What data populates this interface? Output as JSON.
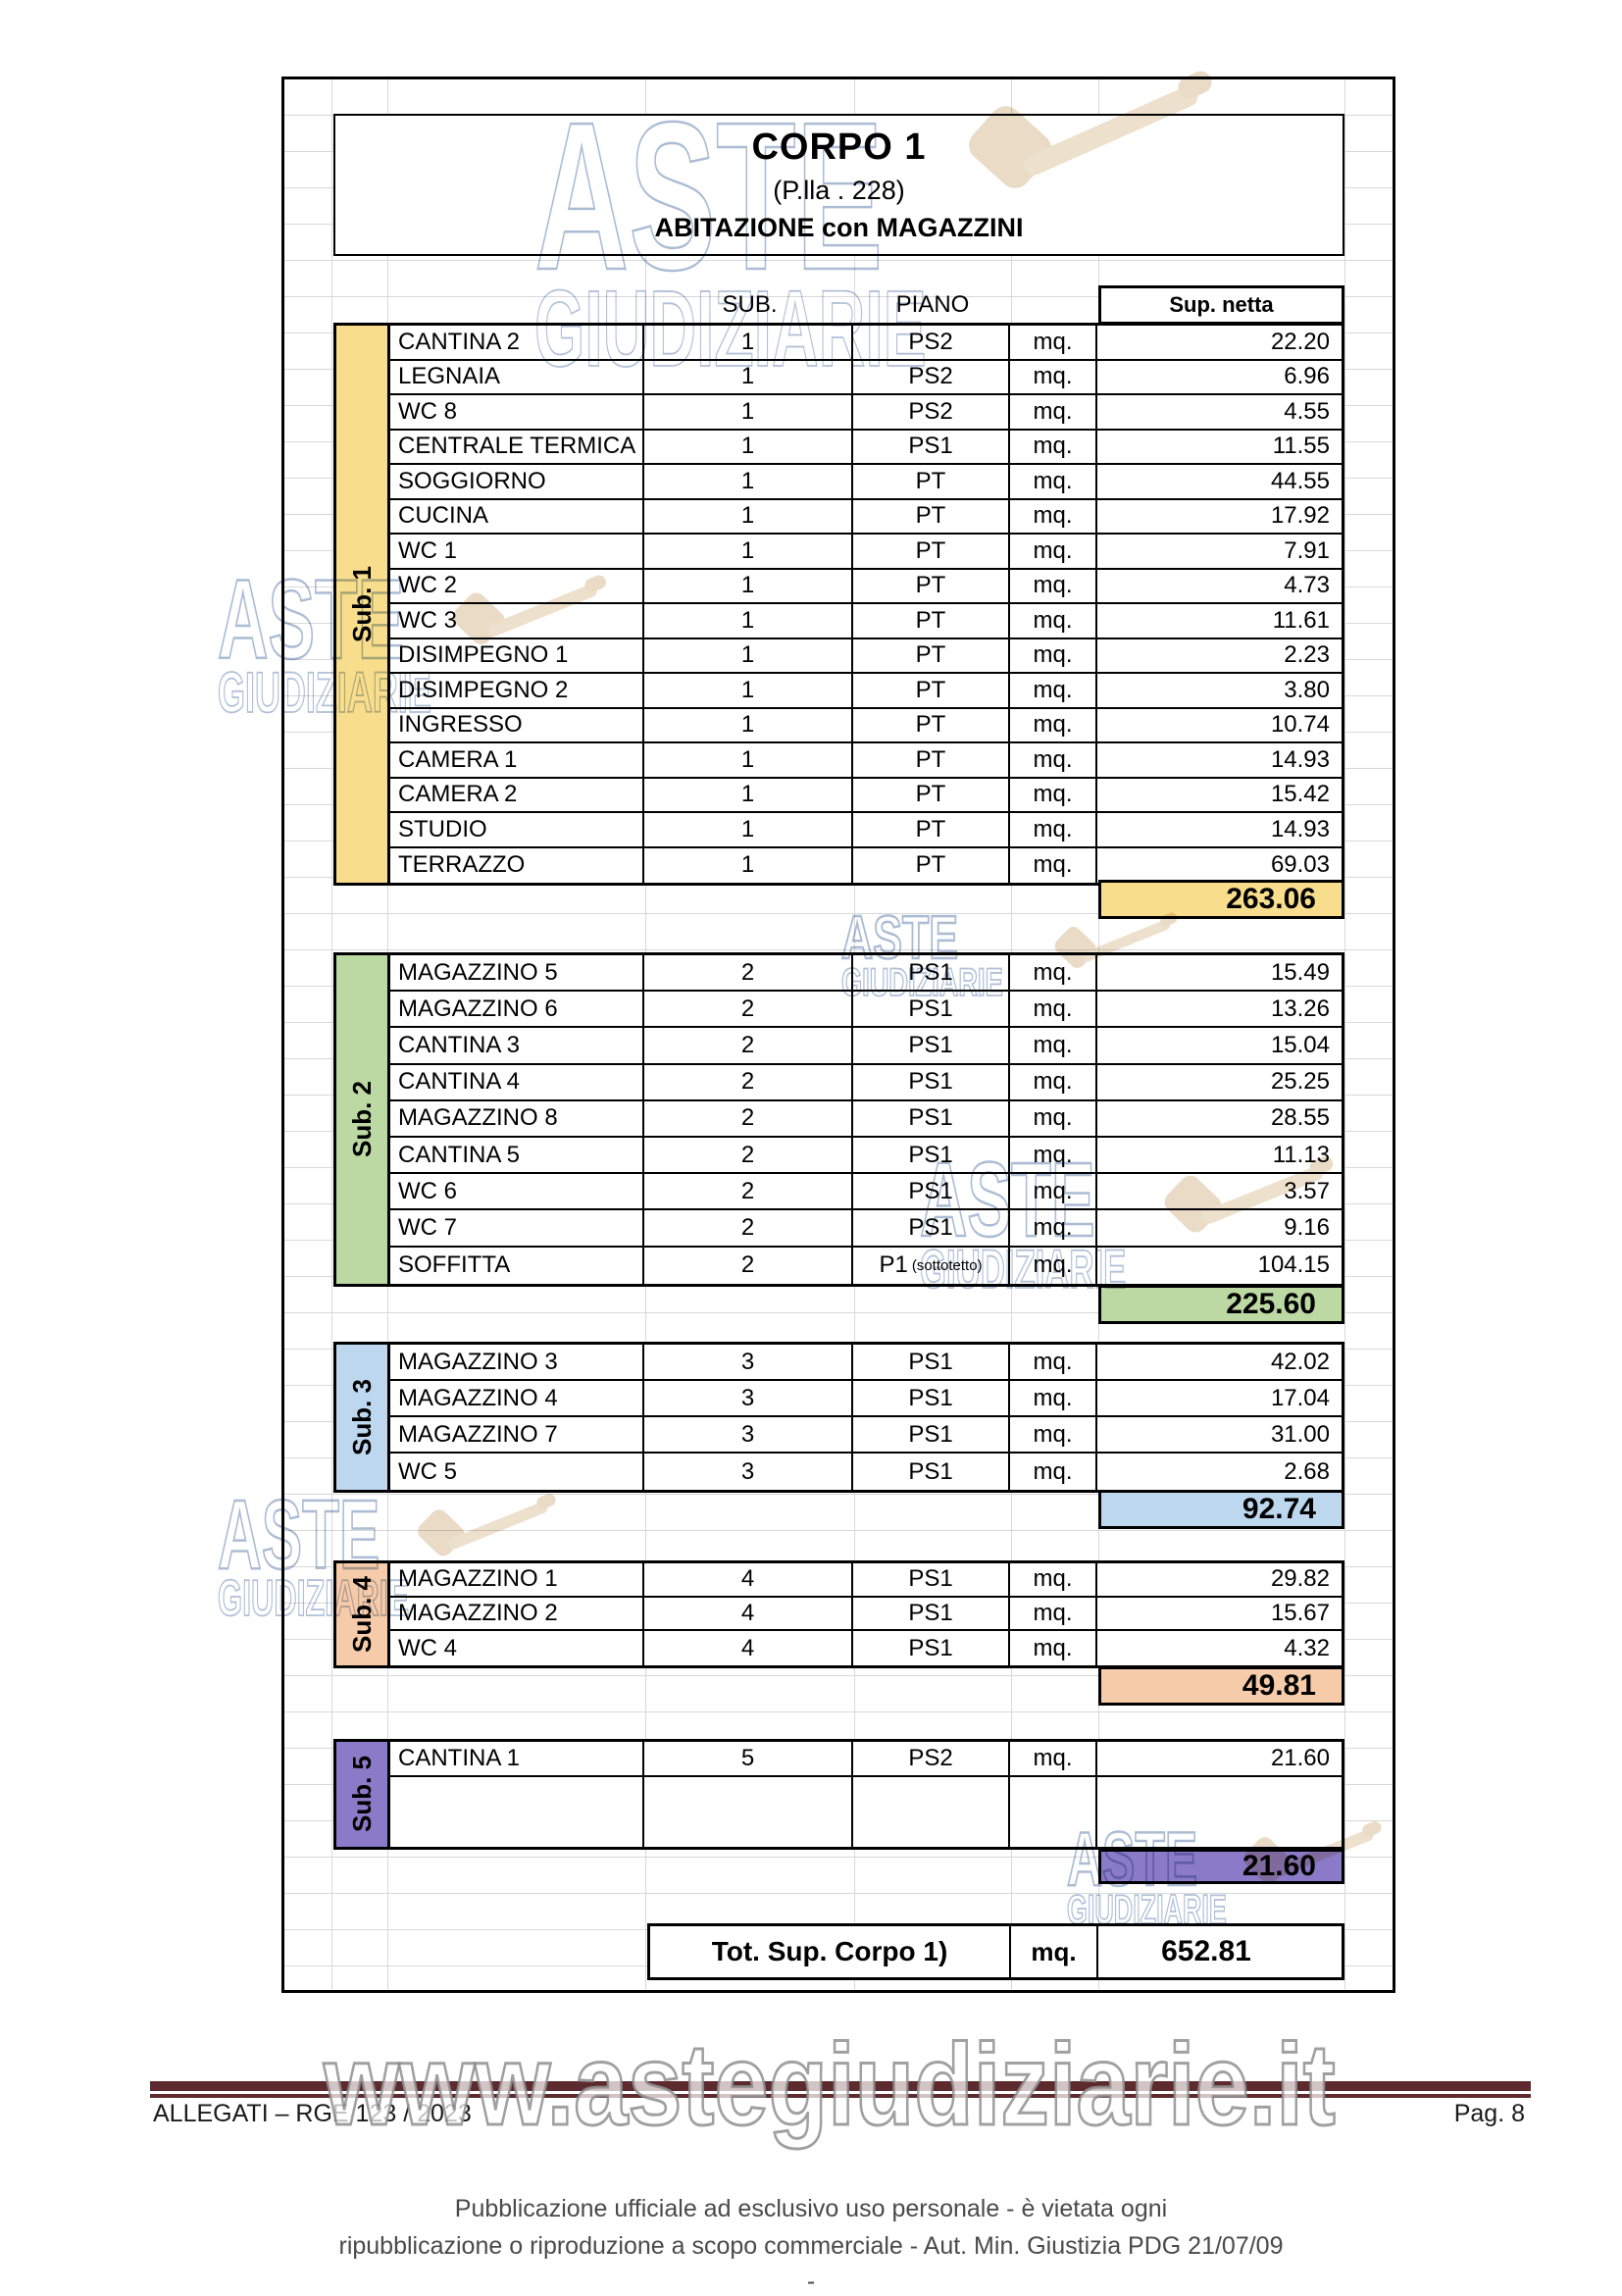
{
  "header": {
    "title": "CORPO 1",
    "subtitle": "(P.lla . 228)",
    "subtitle2": "ABITAZIONE con MAGAZZINI"
  },
  "table": {
    "col_sub": "SUB.",
    "col_piano": "PIANO",
    "col_sup": "Sup. netta",
    "mq_label": "mq.",
    "total_label": "Tot. Sup.  Corpo 1)",
    "total_mq": "mq.",
    "total_value": "652.81",
    "sections": [
      {
        "label": "Sub. 1",
        "color": "#F8DE8C",
        "subtotal": "263.06",
        "rows": [
          {
            "name": "CANTINA 2",
            "sub": "1",
            "piano": "PS2",
            "value": "22.20"
          },
          {
            "name": "LEGNAIA",
            "sub": "1",
            "piano": "PS2",
            "value": "6.96"
          },
          {
            "name": "WC 8",
            "sub": "1",
            "piano": "PS2",
            "value": "4.55"
          },
          {
            "name": "CENTRALE TERMICA",
            "sub": "1",
            "piano": "PS1",
            "value": "11.55"
          },
          {
            "name": "SOGGIORNO",
            "sub": "1",
            "piano": "PT",
            "value": "44.55"
          },
          {
            "name": "CUCINA",
            "sub": "1",
            "piano": "PT",
            "value": "17.92"
          },
          {
            "name": "WC 1",
            "sub": "1",
            "piano": "PT",
            "value": "7.91"
          },
          {
            "name": "WC 2",
            "sub": "1",
            "piano": "PT",
            "value": "4.73"
          },
          {
            "name": "WC 3",
            "sub": "1",
            "piano": "PT",
            "value": "11.61"
          },
          {
            "name": "DISIMPEGNO 1",
            "sub": "1",
            "piano": "PT",
            "value": "2.23"
          },
          {
            "name": "DISIMPEGNO 2",
            "sub": "1",
            "piano": "PT",
            "value": "3.80"
          },
          {
            "name": "INGRESSO",
            "sub": "1",
            "piano": "PT",
            "value": "10.74"
          },
          {
            "name": "CAMERA 1",
            "sub": "1",
            "piano": "PT",
            "value": "14.93"
          },
          {
            "name": "CAMERA 2",
            "sub": "1",
            "piano": "PT",
            "value": "15.42"
          },
          {
            "name": "STUDIO",
            "sub": "1",
            "piano": "PT",
            "value": "14.93"
          },
          {
            "name": "TERRAZZO",
            "sub": "1",
            "piano": "PT",
            "value": "69.03"
          }
        ]
      },
      {
        "label": "Sub. 2",
        "color": "#BCD8A3",
        "subtotal": "225.60",
        "rows": [
          {
            "name": "MAGAZZINO 5",
            "sub": "2",
            "piano": "PS1",
            "value": "15.49"
          },
          {
            "name": "MAGAZZINO 6",
            "sub": "2",
            "piano": "PS1",
            "value": "13.26"
          },
          {
            "name": "CANTINA 3",
            "sub": "2",
            "piano": "PS1",
            "value": "15.04"
          },
          {
            "name": "CANTINA 4",
            "sub": "2",
            "piano": "PS1",
            "value": "25.25"
          },
          {
            "name": "MAGAZZINO 8",
            "sub": "2",
            "piano": "PS1",
            "value": "28.55"
          },
          {
            "name": "CANTINA 5",
            "sub": "2",
            "piano": "PS1",
            "value": "11.13"
          },
          {
            "name": "WC 6",
            "sub": "2",
            "piano": "PS1",
            "value": "3.57"
          },
          {
            "name": "WC 7",
            "sub": "2",
            "piano": "PS1",
            "value": "9.16"
          },
          {
            "name": "SOFFITTA",
            "sub": "2",
            "piano": "P1",
            "piano_note": "(sottotetto)",
            "value": "104.15"
          }
        ]
      },
      {
        "label": "Sub. 3",
        "color": "#BDD7EE",
        "subtotal": "92.74",
        "rows": [
          {
            "name": "MAGAZZINO 3",
            "sub": "3",
            "piano": "PS1",
            "value": "42.02"
          },
          {
            "name": "MAGAZZINO 4",
            "sub": "3",
            "piano": "PS1",
            "value": "17.04"
          },
          {
            "name": "MAGAZZINO 7",
            "sub": "3",
            "piano": "PS1",
            "value": "31.00"
          },
          {
            "name": "WC 5",
            "sub": "3",
            "piano": "PS1",
            "value": "2.68"
          }
        ]
      },
      {
        "label": "Sub. 4",
        "color": "#F6CBA9",
        "subtotal": "49.81",
        "rows": [
          {
            "name": "MAGAZZINO 1",
            "sub": "4",
            "piano": "PS1",
            "value": "29.82"
          },
          {
            "name": "MAGAZZINO 2",
            "sub": "4",
            "piano": "PS1",
            "value": "15.67"
          },
          {
            "name": "WC 4",
            "sub": "4",
            "piano": "PS1",
            "value": "4.32"
          }
        ]
      },
      {
        "label": "Sub. 5",
        "color": "#8A7AC8",
        "subtotal": "21.60",
        "rows": [
          {
            "name": "CANTINA 1",
            "sub": "5",
            "piano": "PS2",
            "value": "21.60"
          }
        ],
        "has_empty_row": true
      }
    ]
  },
  "watermarks": {
    "brand_top": "ASTE",
    "brand_bottom": "GIUDIZIARIE",
    "site": "www.astegiudiziarie.it",
    "stroke_color": "#9cb0cd",
    "gavel_color": "#d8bd98"
  },
  "footer": {
    "left": "ALLEGATI – RGE  123 / 2023",
    "right": "Pag. 8",
    "rule_color": "#5d2a2e",
    "disclaimer_line1": "Pubblicazione ufficiale ad esclusivo uso personale - è vietata ogni",
    "disclaimer_line2": "ripubblicazione o riproduzione a scopo commerciale - Aut. Min. Giustizia PDG 21/07/09",
    "disclaimer_line3": "-"
  }
}
